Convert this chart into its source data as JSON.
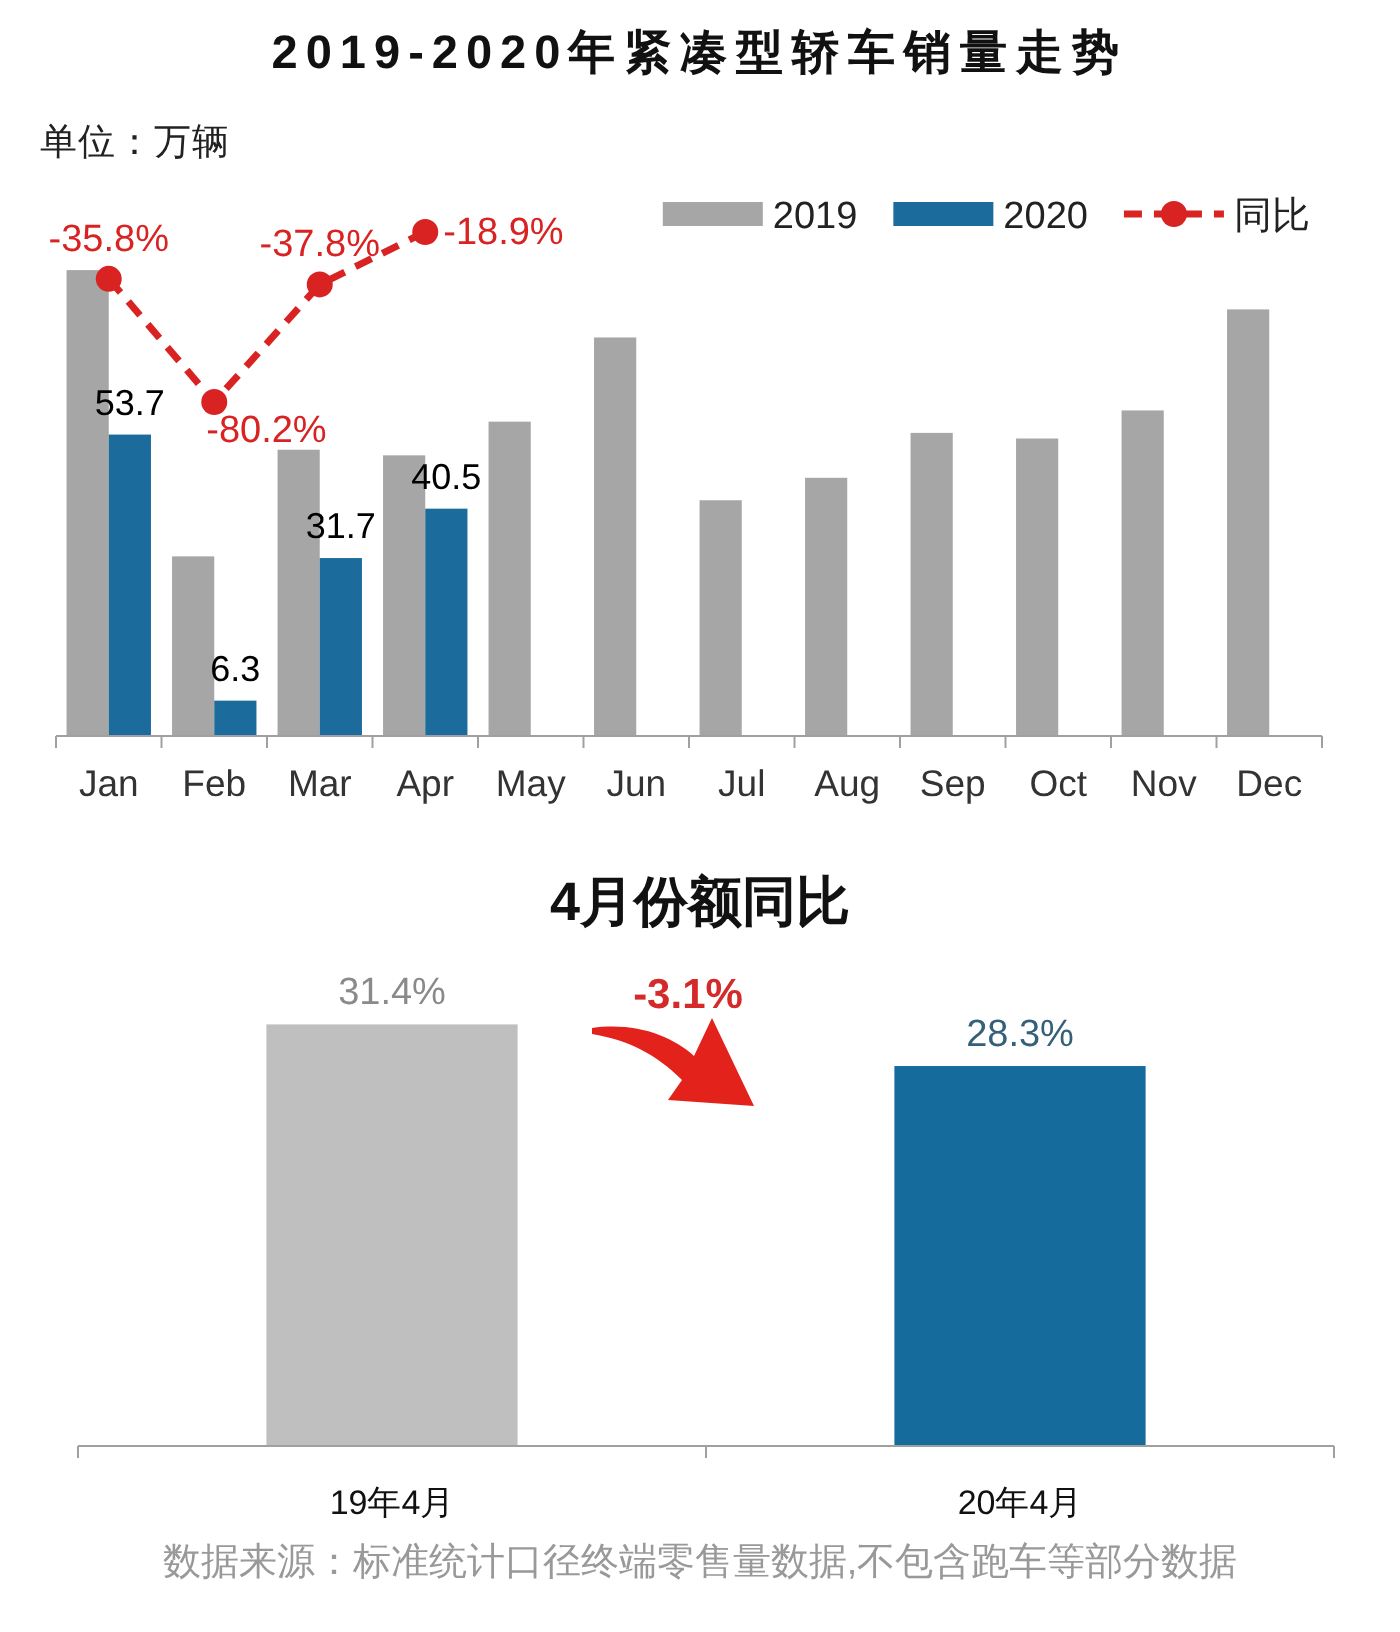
{
  "chart_data": [
    {
      "type": "bar",
      "title": "2019-2020年紧凑型轿车销量走势",
      "ylabel": "单位：万辆",
      "categories": [
        "Jan",
        "Feb",
        "Mar",
        "Apr",
        "May",
        "Jun",
        "Jul",
        "Aug",
        "Sep",
        "Oct",
        "Nov",
        "Dec"
      ],
      "series": [
        {
          "name": "2019",
          "color": "#a6a6a6",
          "values": [
            83,
            32,
            51,
            50,
            56,
            71,
            42,
            46,
            54,
            53,
            58,
            76
          ]
        },
        {
          "name": "2020",
          "color": "#1b6c9c",
          "values": [
            53.7,
            6.3,
            31.7,
            40.5,
            null,
            null,
            null,
            null,
            null,
            null,
            null,
            null
          ],
          "value_labels": [
            "53.7",
            "6.3",
            "31.7",
            "40.5",
            null,
            null,
            null,
            null,
            null,
            null,
            null,
            null
          ]
        },
        {
          "name": "同比",
          "type": "line",
          "axis": "y2",
          "color": "#d92323",
          "values": [
            -35.8,
            -80.2,
            -37.8,
            -18.9,
            null,
            null,
            null,
            null,
            null,
            null,
            null,
            null
          ],
          "value_labels": [
            "-35.8%",
            "-80.2%",
            "-37.8%",
            "-18.9%",
            null,
            null,
            null,
            null,
            null,
            null,
            null,
            null
          ]
        }
      ],
      "tick_labels": "x",
      "legend": "top right",
      "marker": "circle",
      "line_style": "dashed"
    },
    {
      "type": "bar",
      "title": "4月份额同比",
      "categories": [
        "19年4月",
        "20年4月"
      ],
      "values": [
        31.4,
        28.3
      ],
      "colors": [
        "#bfbfbf",
        "#156b9c"
      ],
      "value_labels": [
        "31.4%",
        "28.3%"
      ],
      "tick_labels": "x",
      "annotations": [
        "-3.1%",
        "数据来源：标准统计口径终端零售量数据,不包含跑车等部分数据"
      ]
    }
  ]
}
